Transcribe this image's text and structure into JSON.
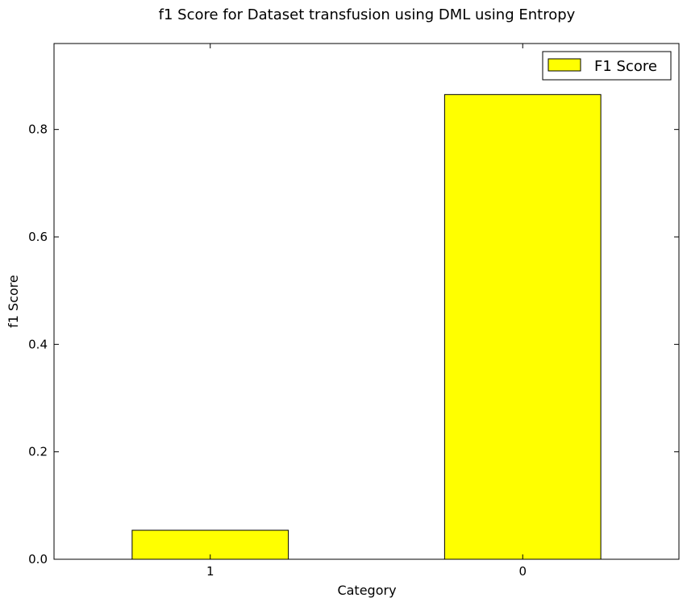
{
  "chart_data": {
    "type": "bar",
    "title": "f1 Score for Dataset transfusion using DML using Entropy",
    "xlabel": "Category",
    "ylabel": "f1 Score",
    "categories": [
      "1",
      "0"
    ],
    "series": [
      {
        "name": "F1 Score",
        "values": [
          0.054,
          0.865
        ],
        "color": "#ffff00"
      }
    ],
    "ylim": [
      0.0,
      0.96
    ],
    "yticks": [
      0.0,
      0.2,
      0.4,
      0.6,
      0.8
    ],
    "ytick_labels": [
      "0.0",
      "0.2",
      "0.4",
      "0.6",
      "0.8"
    ],
    "grid": false,
    "legend": "top-right"
  }
}
